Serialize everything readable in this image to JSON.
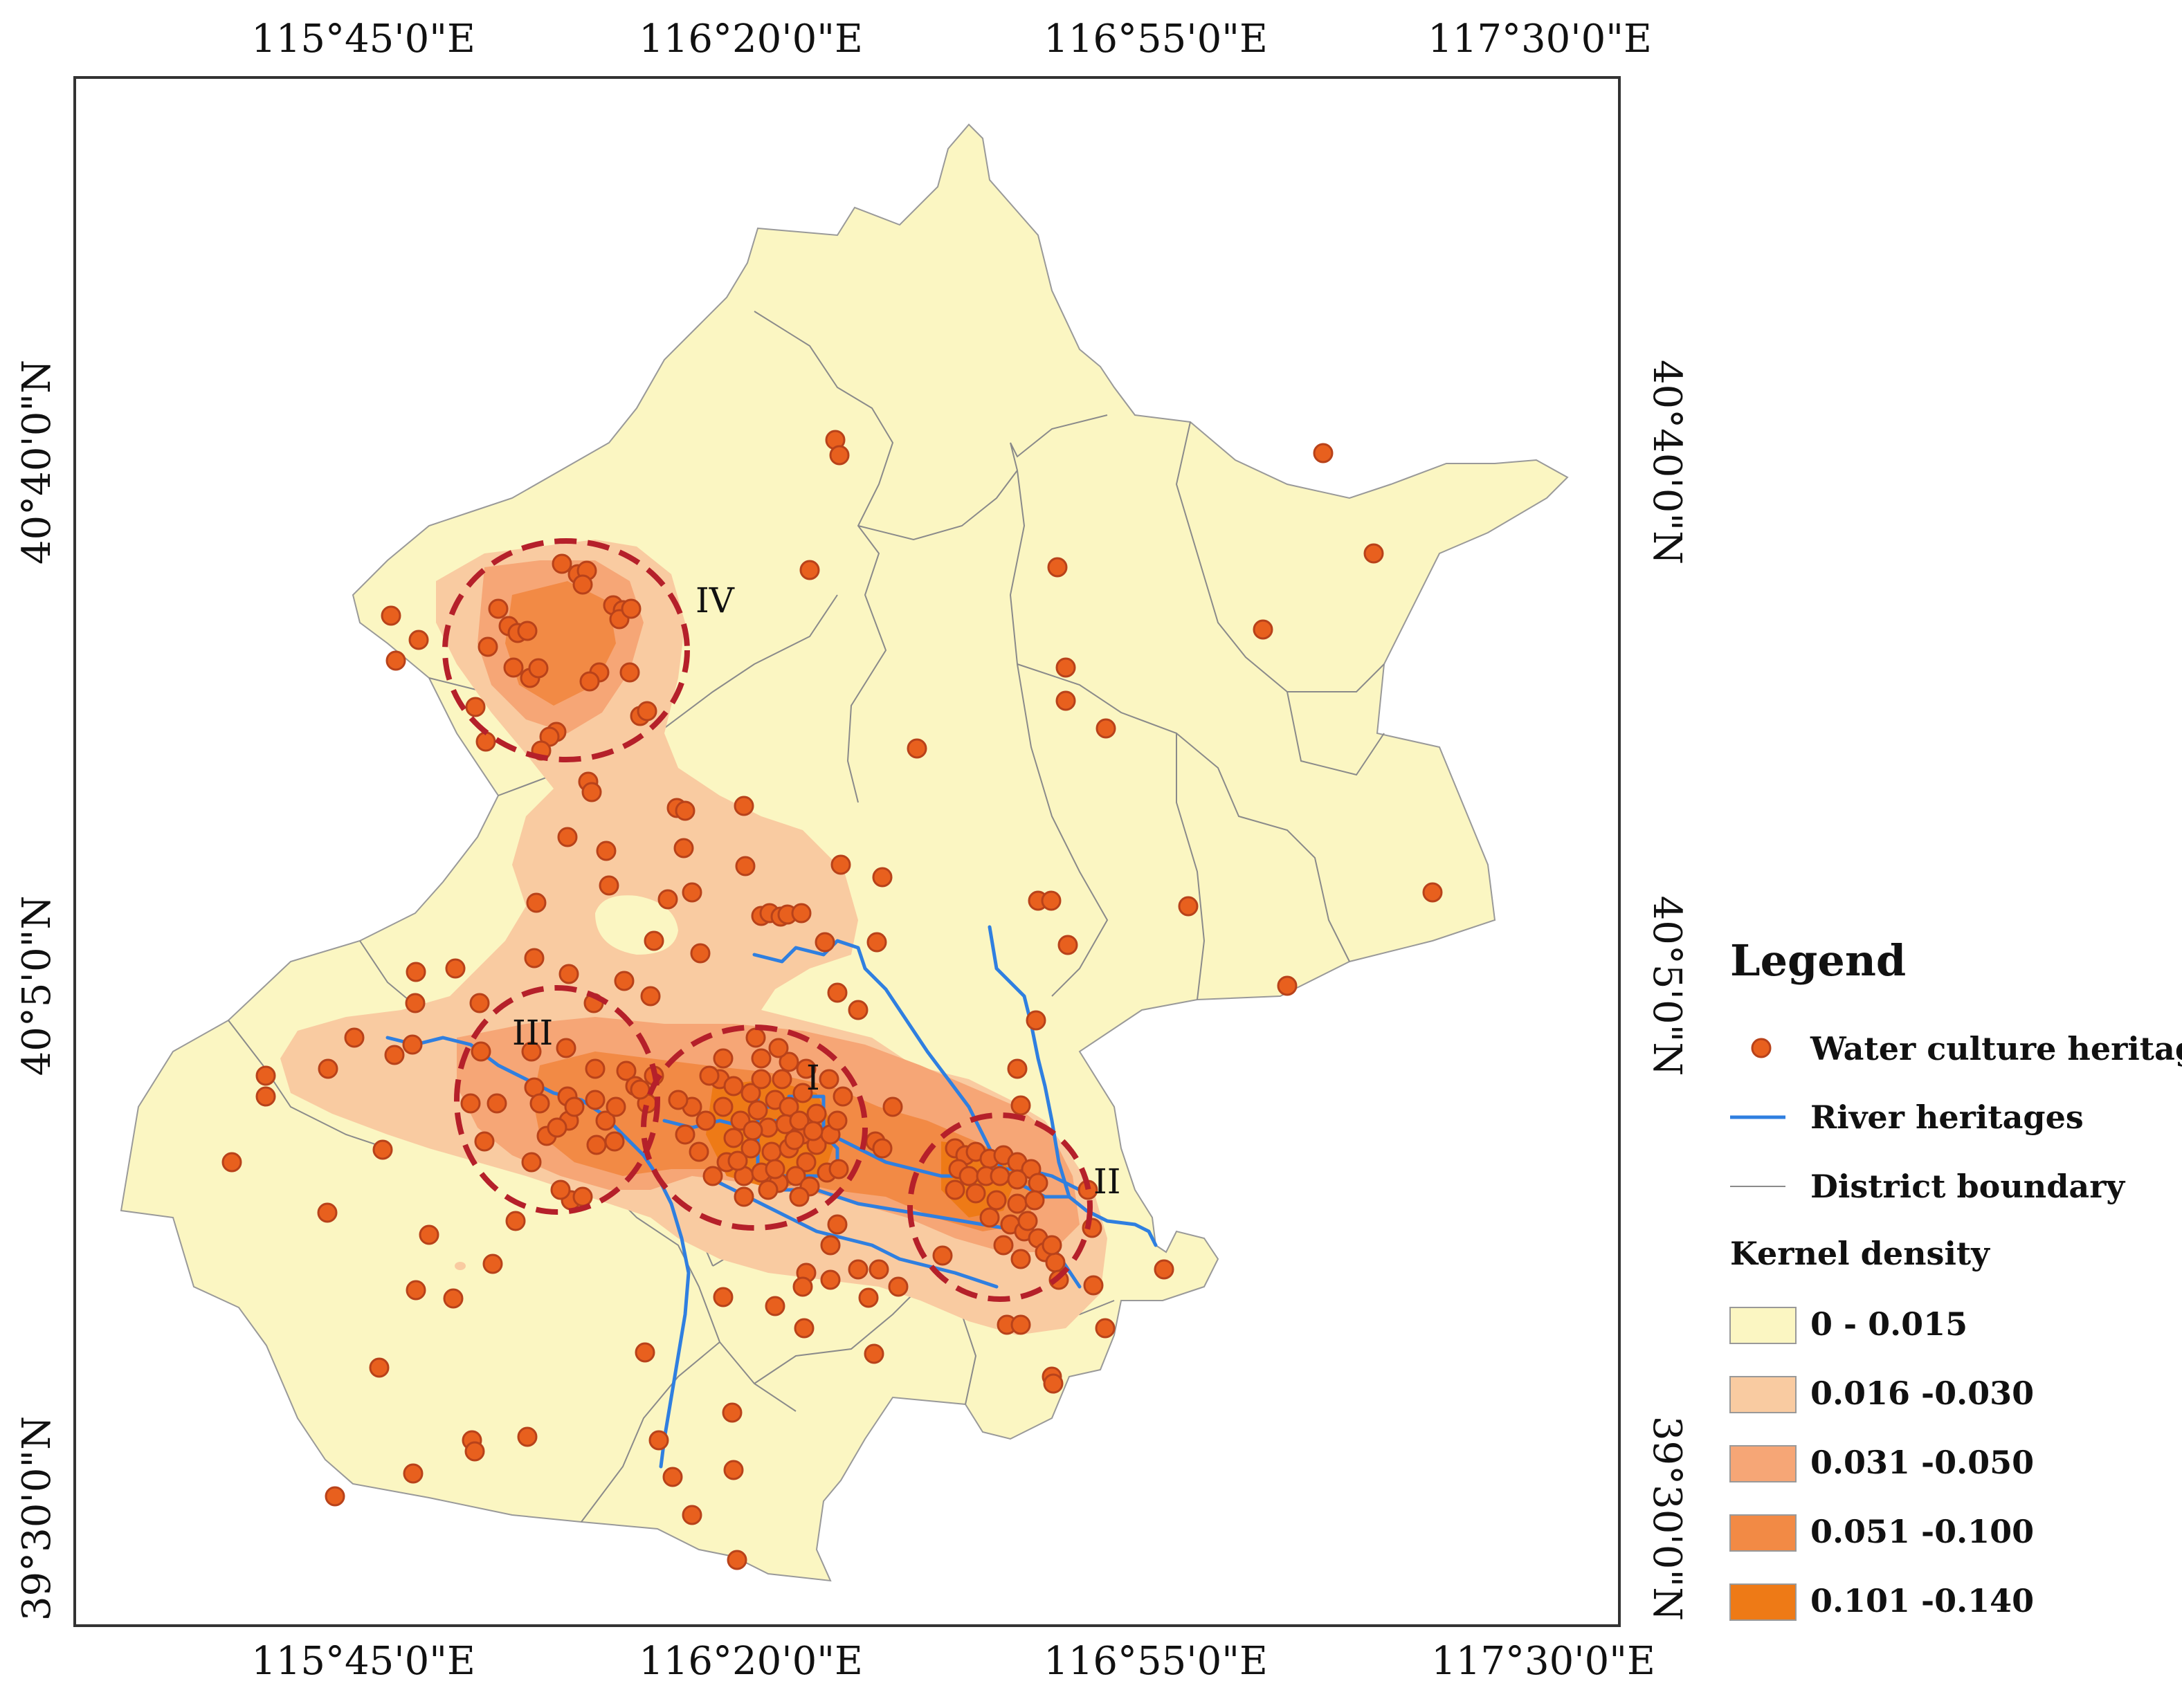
{
  "top_labels": [
    "115°45'0\"E",
    "116°20'0\"E",
    "116°55'0\"E",
    "117°30'0\"E"
  ],
  "bottom_labels": [
    "115°45'0\"E",
    "116°20'0\"E",
    "116°55'0\"E",
    "117°30'0\"E"
  ],
  "left_labels": [
    "40°40'0\"N",
    "40°5'0\"N",
    "39°30'0\"N"
  ],
  "right_labels": [
    "40°40'0\"N",
    "40°5'0\"N",
    "39°30'0\"N"
  ],
  "region_labels": {
    "I": "I",
    "II": "II",
    "III": "III",
    "IV": "IV"
  },
  "legend": {
    "title": "Legend",
    "heritage": "Water culture heritage",
    "river": "River heritages",
    "boundary": "District boundary",
    "density_title": "Kernel density",
    "classes": [
      {
        "label": "0 - 0.015",
        "color": "#FBF6C2"
      },
      {
        "label": "0.016 -0.030",
        "color": "#F9CBA1"
      },
      {
        "label": "0.031 -0.050",
        "color": "#F6A676"
      },
      {
        "label": "0.051 -0.100",
        "color": "#F28A45"
      },
      {
        "label": "0.101 -0.140",
        "color": "#EE7A16"
      }
    ]
  },
  "colors": {
    "base": "#FBF6C2",
    "river": "#2F7FE0",
    "heritage": "#E8601E",
    "circle": "#B5202A"
  }
}
